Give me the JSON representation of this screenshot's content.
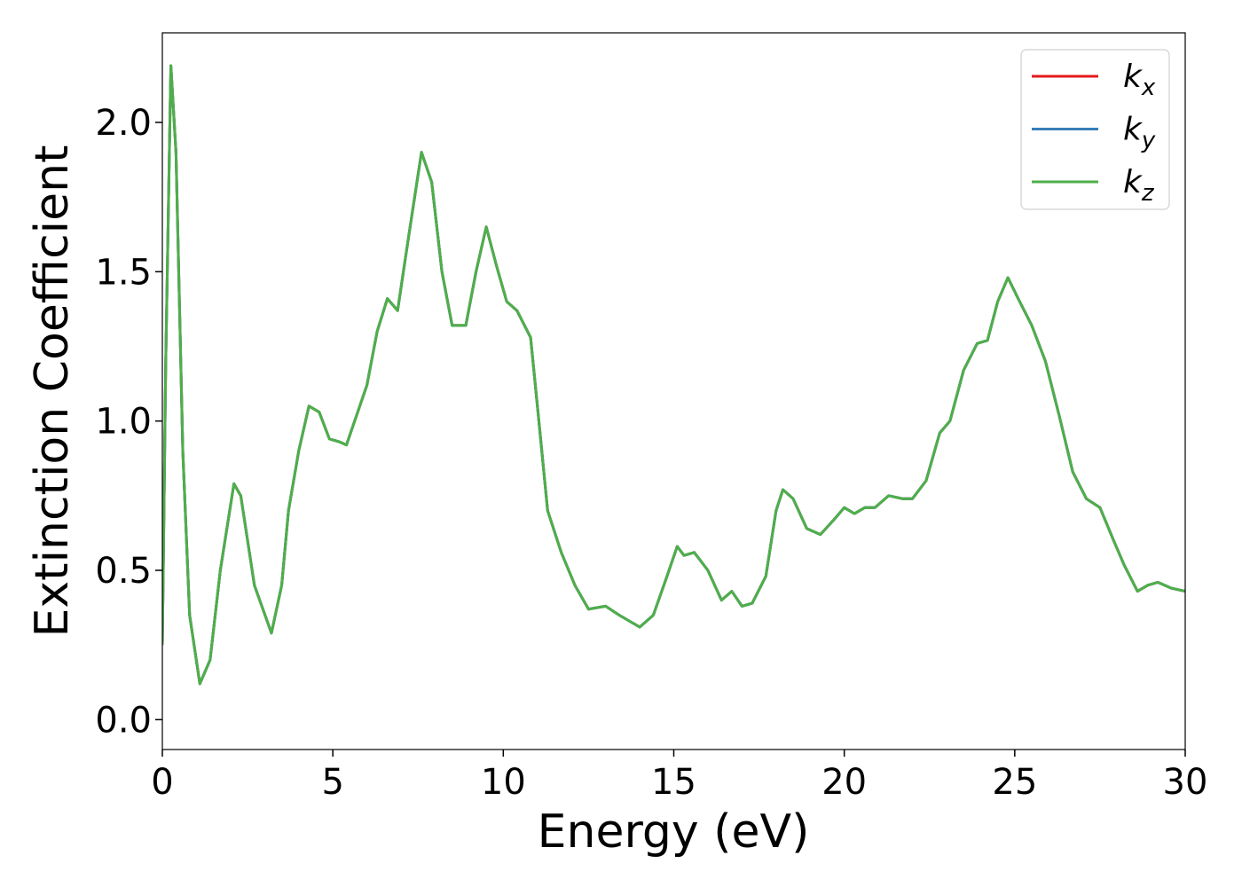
{
  "chart_data": {
    "type": "line",
    "xlabel": "Energy (eV)",
    "ylabel": "Extinction Coefficient",
    "x": [
      0,
      0.1,
      0.25,
      0.4,
      0.6,
      0.8,
      1.1,
      1.4,
      1.7,
      2.1,
      2.3,
      2.7,
      3.2,
      3.5,
      3.7,
      4.0,
      4.3,
      4.6,
      4.9,
      5.2,
      5.4,
      5.7,
      6.0,
      6.3,
      6.6,
      6.9,
      7.2,
      7.6,
      7.9,
      8.2,
      8.5,
      8.9,
      9.2,
      9.5,
      9.8,
      10.1,
      10.4,
      10.8,
      11.0,
      11.3,
      11.7,
      12.1,
      12.5,
      13.0,
      13.4,
      13.7,
      14.0,
      14.4,
      14.8,
      15.1,
      15.3,
      15.6,
      16.0,
      16.4,
      16.7,
      17.0,
      17.3,
      17.7,
      18.0,
      18.2,
      18.5,
      18.9,
      19.3,
      19.7,
      20.0,
      20.3,
      20.6,
      20.9,
      21.3,
      21.7,
      22.0,
      22.4,
      22.8,
      23.1,
      23.5,
      23.9,
      24.2,
      24.5,
      24.8,
      25.1,
      25.5,
      25.9,
      26.3,
      26.7,
      27.1,
      27.5,
      27.9,
      28.2,
      28.6,
      28.9,
      29.2,
      29.6,
      30
    ],
    "series": [
      {
        "name": "kx",
        "color": "#e41a1c",
        "values": [
          0.25,
          1.2,
          2.19,
          1.9,
          0.9,
          0.35,
          0.12,
          0.2,
          0.5,
          0.79,
          0.75,
          0.45,
          0.29,
          0.45,
          0.7,
          0.9,
          1.05,
          1.03,
          0.94,
          0.93,
          0.92,
          1.02,
          1.12,
          1.3,
          1.41,
          1.37,
          1.6,
          1.9,
          1.8,
          1.5,
          1.32,
          1.32,
          1.5,
          1.65,
          1.52,
          1.4,
          1.37,
          1.28,
          1.05,
          0.7,
          0.56,
          0.45,
          0.37,
          0.38,
          0.35,
          0.33,
          0.31,
          0.35,
          0.48,
          0.58,
          0.55,
          0.56,
          0.5,
          0.4,
          0.43,
          0.38,
          0.39,
          0.48,
          0.7,
          0.77,
          0.74,
          0.64,
          0.62,
          0.67,
          0.71,
          0.69,
          0.71,
          0.71,
          0.75,
          0.74,
          0.74,
          0.8,
          0.96,
          1.0,
          1.17,
          1.26,
          1.27,
          1.4,
          1.48,
          1.41,
          1.32,
          1.2,
          1.02,
          0.83,
          0.74,
          0.71,
          0.6,
          0.52,
          0.43,
          0.45,
          0.46,
          0.44,
          0.43
        ]
      },
      {
        "name": "ky",
        "color": "#377eb8",
        "values": [
          0.25,
          1.2,
          2.19,
          1.9,
          0.9,
          0.35,
          0.12,
          0.2,
          0.5,
          0.79,
          0.75,
          0.45,
          0.29,
          0.45,
          0.7,
          0.9,
          1.05,
          1.03,
          0.94,
          0.93,
          0.92,
          1.02,
          1.12,
          1.3,
          1.41,
          1.37,
          1.6,
          1.9,
          1.8,
          1.5,
          1.32,
          1.32,
          1.5,
          1.65,
          1.52,
          1.4,
          1.37,
          1.28,
          1.05,
          0.7,
          0.56,
          0.45,
          0.37,
          0.38,
          0.35,
          0.33,
          0.31,
          0.35,
          0.48,
          0.58,
          0.55,
          0.56,
          0.5,
          0.4,
          0.43,
          0.38,
          0.39,
          0.48,
          0.7,
          0.77,
          0.74,
          0.64,
          0.62,
          0.67,
          0.71,
          0.69,
          0.71,
          0.71,
          0.75,
          0.74,
          0.74,
          0.8,
          0.96,
          1.0,
          1.17,
          1.26,
          1.27,
          1.4,
          1.48,
          1.41,
          1.32,
          1.2,
          1.02,
          0.83,
          0.74,
          0.71,
          0.6,
          0.52,
          0.43,
          0.45,
          0.46,
          0.44,
          0.43
        ]
      },
      {
        "name": "kz",
        "color": "#4daf4a",
        "values": [
          0.25,
          1.2,
          2.19,
          1.9,
          0.9,
          0.35,
          0.12,
          0.2,
          0.5,
          0.79,
          0.75,
          0.45,
          0.29,
          0.45,
          0.7,
          0.9,
          1.05,
          1.03,
          0.94,
          0.93,
          0.92,
          1.02,
          1.12,
          1.3,
          1.41,
          1.37,
          1.6,
          1.9,
          1.8,
          1.5,
          1.32,
          1.32,
          1.5,
          1.65,
          1.52,
          1.4,
          1.37,
          1.28,
          1.05,
          0.7,
          0.56,
          0.45,
          0.37,
          0.38,
          0.35,
          0.33,
          0.31,
          0.35,
          0.48,
          0.58,
          0.55,
          0.56,
          0.5,
          0.4,
          0.43,
          0.38,
          0.39,
          0.48,
          0.7,
          0.77,
          0.74,
          0.64,
          0.62,
          0.67,
          0.71,
          0.69,
          0.71,
          0.71,
          0.75,
          0.74,
          0.74,
          0.8,
          0.96,
          1.0,
          1.17,
          1.26,
          1.27,
          1.4,
          1.48,
          1.41,
          1.32,
          1.2,
          1.02,
          0.83,
          0.74,
          0.71,
          0.6,
          0.52,
          0.43,
          0.45,
          0.46,
          0.44,
          0.43
        ]
      }
    ],
    "xlim": [
      0,
      30
    ],
    "xticks": [
      0,
      5,
      10,
      15,
      20,
      25,
      30
    ],
    "ylim": [
      -0.1,
      2.3
    ],
    "yticks": [
      {
        "value": 0,
        "label": "0.0"
      },
      0.5,
      {
        "value": 1,
        "label": "1.0"
      },
      1.5,
      {
        "value": 2,
        "label": "2.0"
      }
    ],
    "grid": false,
    "legend": "upper right"
  }
}
